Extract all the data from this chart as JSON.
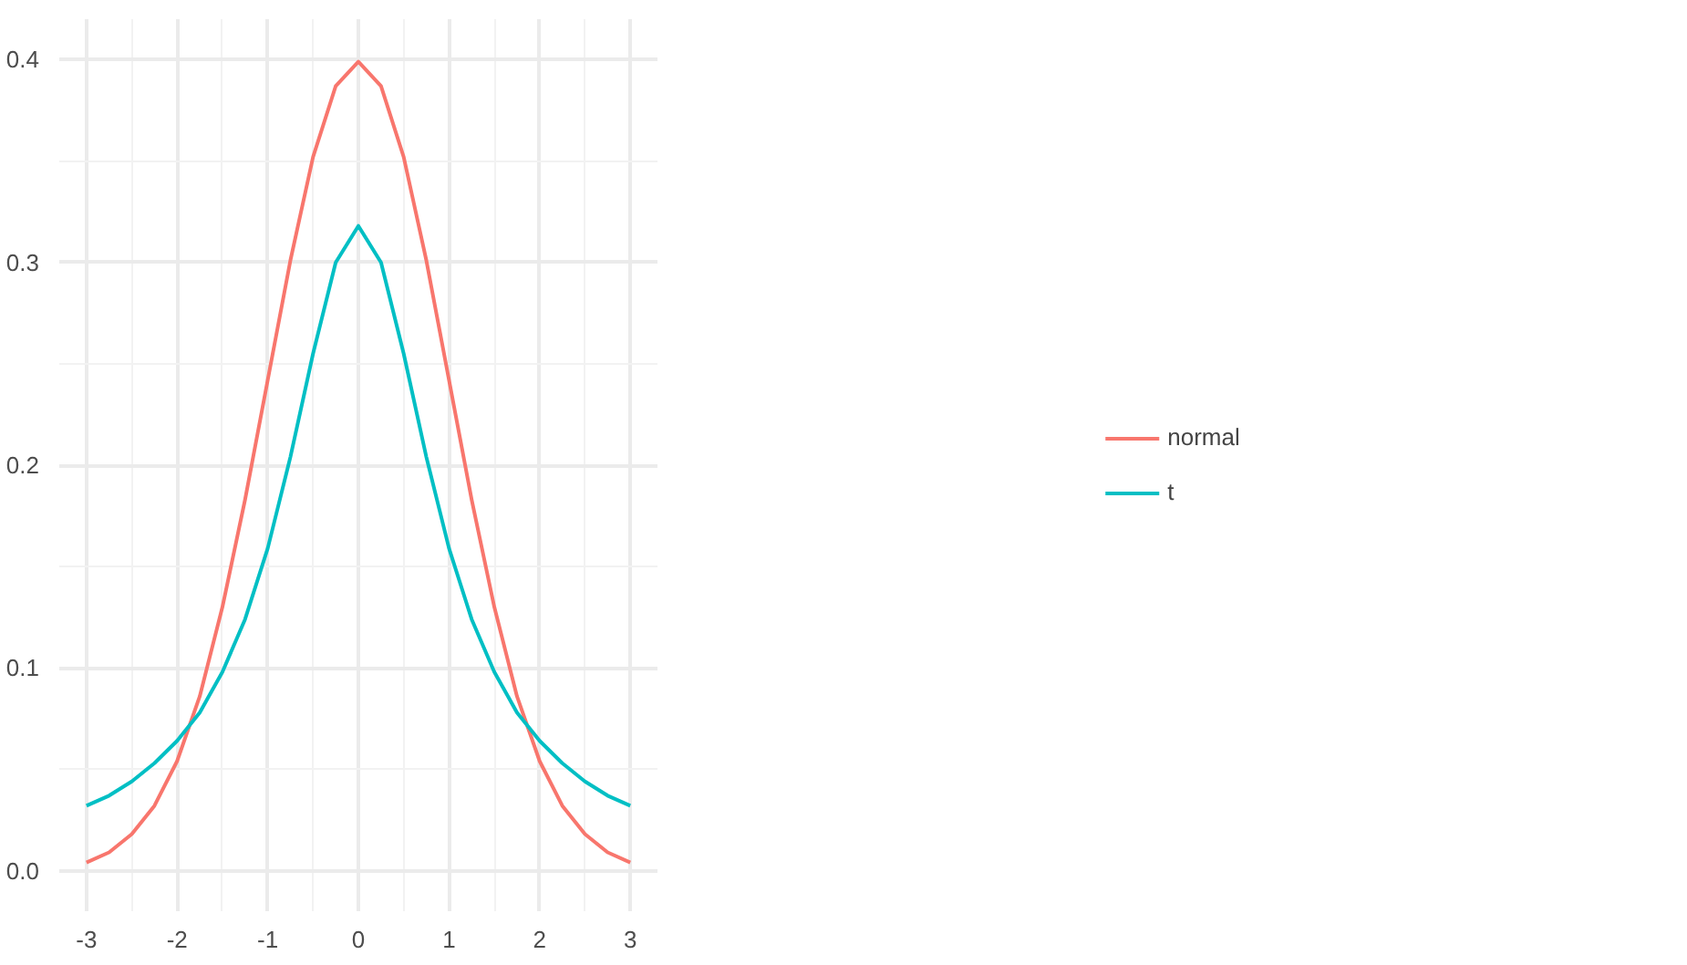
{
  "chart_data": {
    "type": "line",
    "x": [
      -3,
      -2.75,
      -2.5,
      -2.25,
      -2,
      -1.75,
      -1.5,
      -1.25,
      -1,
      -0.75,
      -0.5,
      -0.25,
      0,
      0.25,
      0.5,
      0.75,
      1,
      1.25,
      1.5,
      1.75,
      2,
      2.25,
      2.5,
      2.75,
      3
    ],
    "series": [
      {
        "name": "normal",
        "color": "#f8766d",
        "values": [
          0.004,
          0.009,
          0.018,
          0.032,
          0.054,
          0.086,
          0.13,
          0.183,
          0.242,
          0.301,
          0.352,
          0.387,
          0.399,
          0.387,
          0.352,
          0.301,
          0.242,
          0.183,
          0.13,
          0.086,
          0.054,
          0.032,
          0.018,
          0.009,
          0.004
        ]
      },
      {
        "name": "t",
        "color": "#00bfc4",
        "values": [
          0.032,
          0.037,
          0.044,
          0.053,
          0.064,
          0.078,
          0.098,
          0.124,
          0.159,
          0.204,
          0.255,
          0.3,
          0.318,
          0.3,
          0.255,
          0.204,
          0.159,
          0.124,
          0.098,
          0.078,
          0.064,
          0.053,
          0.044,
          0.037,
          0.032
        ]
      }
    ],
    "xlim": [
      -3.3,
      3.3
    ],
    "ylim": [
      -0.02,
      0.42
    ],
    "xticks": [
      -3,
      -2,
      -1,
      0,
      1,
      2,
      3
    ],
    "yticks": [
      {
        "value": 0,
        "label": "0.0"
      },
      {
        "value": 0.1,
        "label": "0.1"
      },
      {
        "value": 0.2,
        "label": "0.2"
      },
      {
        "value": 0.3,
        "label": "0.3"
      },
      {
        "value": 0.4,
        "label": "0.4"
      }
    ],
    "grid": true,
    "legend": "right",
    "line_style": "solid",
    "marker": "none"
  }
}
